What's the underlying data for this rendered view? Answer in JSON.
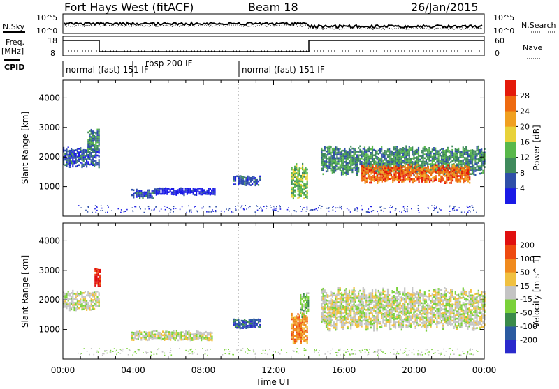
{
  "header": {
    "radar": "Fort Hays West (fitACF)",
    "beam": "Beam 18",
    "date": "26/Jan/2015"
  },
  "top_panels": {
    "nsky_label": "N.Sky",
    "nsky_ticks": [
      "10^5",
      "10^0"
    ],
    "nsearch_label": "N.Search",
    "nsearch_ticks": [
      "10^5",
      "10^0"
    ],
    "freq_label_line1": "Freq.",
    "freq_label_line2": "[MHz]",
    "freq_ticks": [
      "18",
      "8"
    ],
    "nave_label": "Nave",
    "nave_ticks": [
      "60",
      "0"
    ],
    "cpid_label": "CPID"
  },
  "cpid_segments": [
    {
      "label": "normal (fast) 151 IF",
      "start_hour": 0.0,
      "end_hour": 3.6
    },
    {
      "label": "rbsp 200 IF",
      "start_hour": 3.6,
      "end_hour": 10.0
    },
    {
      "label": "normal (fast) 151 IF",
      "start_hour": 10.0,
      "end_hour": 24.0
    }
  ],
  "chart_data": [
    {
      "type": "heatmap",
      "title": "",
      "xlabel": "Time UT",
      "ylabel": "Slant Range [km]",
      "xlim": [
        0,
        24
      ],
      "ylim": [
        0,
        4600
      ],
      "x_ticks": [
        "00:00",
        "04:00",
        "08:00",
        "12:00",
        "16:00",
        "20:00",
        "00:00"
      ],
      "y_ticks": [
        "1000",
        "2000",
        "3000",
        "4000"
      ],
      "colorbar": {
        "label": "Power [dB]",
        "ticks": [
          "4",
          "8",
          "12",
          "16",
          "20",
          "24",
          "28"
        ],
        "colors": [
          "#1a1ae6",
          "#2f4fa8",
          "#3f8a5c",
          "#58b84a",
          "#e8d23a",
          "#f0a020",
          "#ee6a10",
          "#e41a0a"
        ]
      },
      "echo_regions": [
        {
          "t_start": 0.0,
          "t_end": 2.1,
          "r_low": 1700,
          "r_high": 2300,
          "level": 1
        },
        {
          "t_start": 1.4,
          "t_end": 2.1,
          "r_low": 2200,
          "r_high": 2900,
          "level": 2
        },
        {
          "t_start": 3.9,
          "t_end": 5.2,
          "r_low": 650,
          "r_high": 900,
          "level": 1
        },
        {
          "t_start": 5.2,
          "t_end": 8.7,
          "r_low": 750,
          "r_high": 950,
          "level": 0
        },
        {
          "t_start": 9.7,
          "t_end": 11.2,
          "r_low": 1050,
          "r_high": 1350,
          "level": 1
        },
        {
          "t_start": 13.0,
          "t_end": 13.9,
          "r_low": 700,
          "r_high": 1700,
          "level": 3
        },
        {
          "t_start": 14.7,
          "t_end": 24.0,
          "r_low": 1500,
          "r_high": 2300,
          "level": 2
        },
        {
          "t_start": 17.0,
          "t_end": 23.2,
          "r_low": 1150,
          "r_high": 1700,
          "level": 6
        }
      ]
    },
    {
      "type": "heatmap",
      "title": "",
      "xlabel": "Time UT",
      "ylabel": "Slant Range [km]",
      "xlim": [
        0,
        24
      ],
      "ylim": [
        0,
        4600
      ],
      "x_ticks": [
        "00:00",
        "04:00",
        "08:00",
        "12:00",
        "16:00",
        "20:00",
        "00:00"
      ],
      "y_ticks": [
        "1000",
        "2000",
        "3000",
        "4000"
      ],
      "colorbar": {
        "label": "Velocity [m s^-1]",
        "ticks": [
          "200",
          "100",
          "50",
          "15",
          "-15",
          "-50",
          "-100",
          "-200"
        ],
        "colors": [
          "#2a2acc",
          "#2b5aa0",
          "#3a8a4a",
          "#7ad13a",
          "#c4c4c4",
          "#f0c040",
          "#f08a1e",
          "#ee4a10",
          "#e01010"
        ]
      },
      "echo_regions": [
        {
          "t_start": 0.0,
          "t_end": 2.1,
          "r_low": 1700,
          "r_high": 2300,
          "level": 4
        },
        {
          "t_start": 1.8,
          "t_end": 2.1,
          "r_low": 2400,
          "r_high": 3000,
          "level": 8
        },
        {
          "t_start": 3.9,
          "t_end": 8.5,
          "r_low": 650,
          "r_high": 950,
          "level": 4
        },
        {
          "t_start": 9.7,
          "t_end": 11.2,
          "r_low": 1050,
          "r_high": 1350,
          "level": 1
        },
        {
          "t_start": 13.0,
          "t_end": 13.9,
          "r_low": 600,
          "r_high": 1500,
          "level": 6
        },
        {
          "t_start": 13.5,
          "t_end": 14.0,
          "r_low": 1500,
          "r_high": 2200,
          "level": 3
        },
        {
          "t_start": 14.7,
          "t_end": 24.0,
          "r_low": 1100,
          "r_high": 2300,
          "level": 4
        }
      ]
    }
  ]
}
